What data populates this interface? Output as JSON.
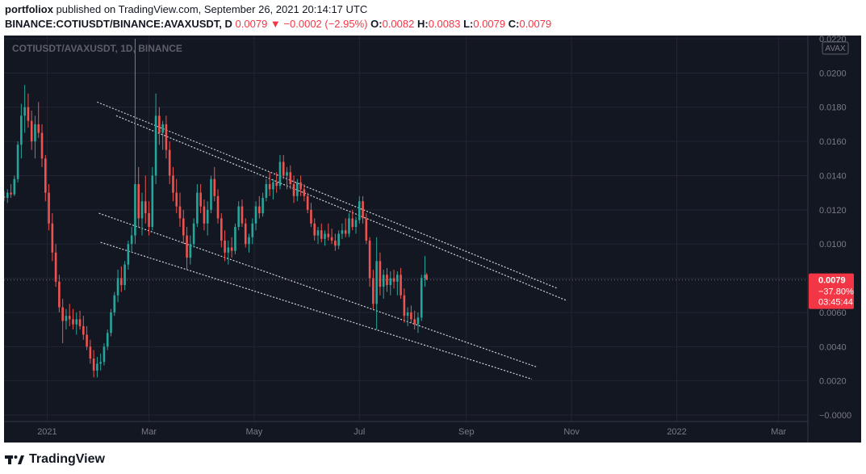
{
  "header": {
    "author": "portfoliox",
    "published": "published on TradingView.com, September 26, 2021 20:14:17 UTC",
    "symbol": "BINANCE:COTIUSDT/BINANCE:AVAXUSDT, D",
    "last": "0.0079",
    "change": "−0.0002 (−2.95%)",
    "o_label": "O:",
    "o": "0.0082",
    "h_label": "H:",
    "h": "0.0083",
    "l_label": "L:",
    "l": "0.0079",
    "c_label": "C:",
    "c": "0.0079"
  },
  "chart_data": {
    "type": "candlestick",
    "watermark": "COTIUSDT/AVAXUSDT, 1D, BINANCE",
    "scale_badge": "AVAX",
    "y_ticks": [
      "0.0220",
      "0.0200",
      "0.0180",
      "0.0160",
      "0.0140",
      "0.0120",
      "0.0100",
      "0.0080",
      "0.0060",
      "0.0040",
      "0.0020",
      "−0.0000"
    ],
    "y_tick_values": [
      0.022,
      0.02,
      0.018,
      0.016,
      0.014,
      0.012,
      0.01,
      0.008,
      0.006,
      0.004,
      0.002,
      0.0
    ],
    "ylim": [
      0.0,
      0.022
    ],
    "x_ticks": [
      "2021",
      "Mar",
      "May",
      "Jul",
      "Sep",
      "Nov",
      "2022",
      "Mar"
    ],
    "x_tick_days": [
      0,
      59,
      120,
      181,
      243,
      304,
      365,
      424
    ],
    "xlim_days": [
      -25,
      441
    ],
    "last_price": 0.0079,
    "price_label": {
      "price": "0.0079",
      "change": "−37.80%",
      "countdown": "03:45:44"
    },
    "colors": {
      "up": "#26a69a",
      "down": "#ef5350",
      "bg": "#131722",
      "grid": "#232632",
      "text": "#787b86",
      "label": "#f23645"
    },
    "channel_lines": [
      {
        "x1": 29,
        "y1": 0.0183,
        "x2": 296,
        "y2": 0.0074
      },
      {
        "x1": 40,
        "y1": 0.0175,
        "x2": 301,
        "y2": 0.0067
      },
      {
        "x1": 30,
        "y1": 0.0118,
        "x2": 284,
        "y2": 0.0028
      },
      {
        "x1": 31,
        "y1": 0.0101,
        "x2": 281,
        "y2": 0.0021
      }
    ],
    "candles": [
      [
        -25,
        0.0128,
        0.0131,
        0.0125,
        0.0127
      ],
      [
        -23,
        0.0127,
        0.0132,
        0.0124,
        0.013
      ],
      [
        -21,
        0.013,
        0.0135,
        0.0127,
        0.0129
      ],
      [
        -19,
        0.0129,
        0.014,
        0.0128,
        0.0138
      ],
      [
        -17,
        0.0138,
        0.016,
        0.0136,
        0.0158
      ],
      [
        -15,
        0.0158,
        0.0182,
        0.015,
        0.0175
      ],
      [
        -13,
        0.0175,
        0.0193,
        0.0165,
        0.018
      ],
      [
        -11,
        0.018,
        0.0188,
        0.0168,
        0.0172
      ],
      [
        -9,
        0.0172,
        0.0178,
        0.0155,
        0.016
      ],
      [
        -7,
        0.016,
        0.0175,
        0.015,
        0.017
      ],
      [
        -5,
        0.017,
        0.0183,
        0.0162,
        0.0165
      ],
      [
        -3,
        0.0165,
        0.017,
        0.0145,
        0.015
      ],
      [
        -1,
        0.015,
        0.0152,
        0.0125,
        0.013
      ],
      [
        1,
        0.013,
        0.0135,
        0.0108,
        0.0112
      ],
      [
        3,
        0.0112,
        0.0118,
        0.009,
        0.0095
      ],
      [
        5,
        0.0095,
        0.01,
        0.0075,
        0.0078
      ],
      [
        7,
        0.0078,
        0.0082,
        0.006,
        0.0063
      ],
      [
        9,
        0.0063,
        0.0068,
        0.0042,
        0.0055
      ],
      [
        11,
        0.0055,
        0.0062,
        0.005,
        0.0058
      ],
      [
        13,
        0.0058,
        0.0065,
        0.0052,
        0.0056
      ],
      [
        15,
        0.0056,
        0.0062,
        0.005,
        0.0053
      ],
      [
        17,
        0.0053,
        0.006,
        0.0047,
        0.0056
      ],
      [
        19,
        0.0056,
        0.0061,
        0.005,
        0.0052
      ],
      [
        21,
        0.0052,
        0.0058,
        0.0044,
        0.0047
      ],
      [
        23,
        0.0047,
        0.0052,
        0.0038,
        0.004
      ],
      [
        25,
        0.004,
        0.0044,
        0.003,
        0.0033
      ],
      [
        27,
        0.0033,
        0.0038,
        0.0022,
        0.0026
      ],
      [
        29,
        0.0026,
        0.0034,
        0.0022,
        0.003
      ],
      [
        31,
        0.003,
        0.0036,
        0.0026,
        0.0031
      ],
      [
        33,
        0.0031,
        0.0042,
        0.0029,
        0.004
      ],
      [
        35,
        0.004,
        0.005,
        0.0038,
        0.0048
      ],
      [
        37,
        0.0048,
        0.0062,
        0.0046,
        0.006
      ],
      [
        39,
        0.006,
        0.0072,
        0.0058,
        0.007
      ],
      [
        41,
        0.007,
        0.0085,
        0.0066,
        0.008
      ],
      [
        43,
        0.008,
        0.0087,
        0.0072,
        0.0076
      ],
      [
        45,
        0.0076,
        0.009,
        0.0073,
        0.0088
      ],
      [
        47,
        0.0088,
        0.0102,
        0.0085,
        0.01
      ],
      [
        49,
        0.01,
        0.011,
        0.0095,
        0.0105
      ],
      [
        51,
        0.0105,
        0.022,
        0.01,
        0.0135
      ],
      [
        53,
        0.0135,
        0.0145,
        0.011,
        0.0115
      ],
      [
        55,
        0.0115,
        0.013,
        0.0105,
        0.0125
      ],
      [
        57,
        0.0125,
        0.014,
        0.0112,
        0.0118
      ],
      [
        59,
        0.0118,
        0.0125,
        0.0105,
        0.011
      ],
      [
        61,
        0.011,
        0.0145,
        0.0108,
        0.014
      ],
      [
        63,
        0.014,
        0.0188,
        0.0135,
        0.0175
      ],
      [
        65,
        0.0175,
        0.018,
        0.0158,
        0.0165
      ],
      [
        67,
        0.0165,
        0.0172,
        0.0155,
        0.017
      ],
      [
        69,
        0.017,
        0.0175,
        0.015,
        0.0155
      ],
      [
        71,
        0.0155,
        0.016,
        0.0135,
        0.014
      ],
      [
        73,
        0.014,
        0.0145,
        0.0125,
        0.013
      ],
      [
        75,
        0.013,
        0.0138,
        0.0118,
        0.0122
      ],
      [
        77,
        0.0122,
        0.013,
        0.011,
        0.0115
      ],
      [
        79,
        0.0115,
        0.012,
        0.01,
        0.0105
      ],
      [
        81,
        0.0105,
        0.011,
        0.0085,
        0.0092
      ],
      [
        83,
        0.0092,
        0.0105,
        0.0088,
        0.01
      ],
      [
        85,
        0.01,
        0.0115,
        0.0098,
        0.0112
      ],
      [
        87,
        0.0112,
        0.0135,
        0.011,
        0.013
      ],
      [
        89,
        0.013,
        0.0135,
        0.0118,
        0.0122
      ],
      [
        91,
        0.0122,
        0.0126,
        0.0108,
        0.0112
      ],
      [
        93,
        0.0112,
        0.0125,
        0.0105,
        0.012
      ],
      [
        95,
        0.012,
        0.014,
        0.0118,
        0.0138
      ],
      [
        97,
        0.0138,
        0.0145,
        0.0125,
        0.0128
      ],
      [
        99,
        0.0128,
        0.0132,
        0.0112,
        0.0115
      ],
      [
        101,
        0.0115,
        0.0118,
        0.0098,
        0.0102
      ],
      [
        103,
        0.0102,
        0.0108,
        0.009,
        0.0095
      ],
      [
        105,
        0.0095,
        0.0102,
        0.0088,
        0.0098
      ],
      [
        107,
        0.0098,
        0.0104,
        0.0092,
        0.0096
      ],
      [
        109,
        0.0096,
        0.0112,
        0.0094,
        0.011
      ],
      [
        111,
        0.011,
        0.0125,
        0.0108,
        0.0122
      ],
      [
        113,
        0.0122,
        0.0126,
        0.011,
        0.0112
      ],
      [
        115,
        0.0112,
        0.0115,
        0.0098,
        0.01
      ],
      [
        117,
        0.01,
        0.0106,
        0.0095,
        0.0104
      ],
      [
        119,
        0.0104,
        0.0115,
        0.01,
        0.0112
      ],
      [
        121,
        0.0112,
        0.0125,
        0.0108,
        0.0122
      ],
      [
        123,
        0.0122,
        0.0128,
        0.0115,
        0.0118
      ],
      [
        125,
        0.0118,
        0.013,
        0.0116,
        0.0127
      ],
      [
        127,
        0.0127,
        0.0138,
        0.0125,
        0.0135
      ],
      [
        129,
        0.0135,
        0.0142,
        0.0128,
        0.0132
      ],
      [
        131,
        0.0132,
        0.0138,
        0.0126,
        0.0136
      ],
      [
        133,
        0.0136,
        0.0142,
        0.013,
        0.0134
      ],
      [
        135,
        0.0134,
        0.0152,
        0.0132,
        0.0148
      ],
      [
        137,
        0.0148,
        0.0152,
        0.0138,
        0.014
      ],
      [
        139,
        0.014,
        0.0145,
        0.0132,
        0.0142
      ],
      [
        141,
        0.0142,
        0.0146,
        0.0132,
        0.0135
      ],
      [
        143,
        0.0135,
        0.014,
        0.0124,
        0.0128
      ],
      [
        145,
        0.0128,
        0.0138,
        0.0125,
        0.0136
      ],
      [
        147,
        0.0136,
        0.014,
        0.0128,
        0.0132
      ],
      [
        149,
        0.0132,
        0.0135,
        0.0125,
        0.0128
      ],
      [
        151,
        0.0128,
        0.013,
        0.0118,
        0.012
      ],
      [
        153,
        0.012,
        0.0124,
        0.011,
        0.0112
      ],
      [
        155,
        0.0112,
        0.0115,
        0.0102,
        0.0105
      ],
      [
        157,
        0.0105,
        0.011,
        0.01,
        0.0108
      ],
      [
        159,
        0.0108,
        0.0112,
        0.0101,
        0.0103
      ],
      [
        161,
        0.0103,
        0.0108,
        0.0099,
        0.0106
      ],
      [
        163,
        0.0106,
        0.0112,
        0.0102,
        0.0104
      ],
      [
        165,
        0.0104,
        0.0109,
        0.01,
        0.0102
      ],
      [
        167,
        0.0102,
        0.0106,
        0.0096,
        0.0099
      ],
      [
        169,
        0.0099,
        0.0108,
        0.0097,
        0.0106
      ],
      [
        171,
        0.0106,
        0.0112,
        0.0103,
        0.0108
      ],
      [
        173,
        0.0108,
        0.0115,
        0.0104,
        0.0106
      ],
      [
        175,
        0.0106,
        0.0118,
        0.0104,
        0.0115
      ],
      [
        177,
        0.0115,
        0.012,
        0.0108,
        0.011
      ],
      [
        179,
        0.011,
        0.0116,
        0.0106,
        0.0114
      ],
      [
        181,
        0.0114,
        0.0128,
        0.0112,
        0.0125
      ],
      [
        183,
        0.0125,
        0.0128,
        0.0112,
        0.0115
      ],
      [
        185,
        0.0115,
        0.0118,
        0.01,
        0.0102
      ],
      [
        187,
        0.0102,
        0.0104,
        0.0075,
        0.008
      ],
      [
        189,
        0.008,
        0.0085,
        0.0062,
        0.0065
      ],
      [
        191,
        0.0065,
        0.0104,
        0.005,
        0.009
      ],
      [
        193,
        0.009,
        0.0095,
        0.007,
        0.0075
      ],
      [
        195,
        0.0075,
        0.0085,
        0.0068,
        0.0082
      ],
      [
        197,
        0.0082,
        0.0086,
        0.0072,
        0.0076
      ],
      [
        199,
        0.0076,
        0.0084,
        0.007,
        0.008
      ],
      [
        201,
        0.008,
        0.0085,
        0.0074,
        0.0078
      ],
      [
        203,
        0.0078,
        0.0084,
        0.007,
        0.0082
      ],
      [
        205,
        0.0082,
        0.0086,
        0.0068,
        0.007
      ],
      [
        207,
        0.007,
        0.0074,
        0.0054,
        0.0058
      ],
      [
        209,
        0.0058,
        0.0063,
        0.0052,
        0.006
      ],
      [
        211,
        0.006,
        0.0064,
        0.0054,
        0.0056
      ],
      [
        213,
        0.0056,
        0.0061,
        0.005,
        0.0053
      ],
      [
        215,
        0.0053,
        0.006,
        0.0048,
        0.0057
      ],
      [
        217,
        0.0057,
        0.0082,
        0.0055,
        0.008
      ],
      [
        219,
        0.008,
        0.0093,
        0.0075,
        0.0082
      ],
      [
        220,
        0.0082,
        0.0083,
        0.0079,
        0.0079
      ]
    ]
  }
}
